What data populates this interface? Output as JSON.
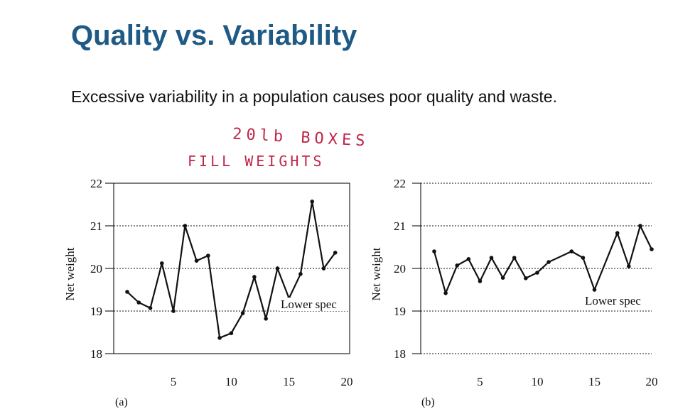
{
  "slide": {
    "title": "Quality vs. Variability",
    "body": "Excessive variability in a population causes poor quality and waste.",
    "annotation": {
      "line1": "20lb BOXES",
      "line2": "FILL WEIGHTS",
      "color": "#c0254a"
    }
  },
  "colors": {
    "title": "#1f5a85",
    "ink": "#111111"
  },
  "chart_data": [
    {
      "type": "line",
      "panel_label": "(a)",
      "ylabel": "Net weight",
      "xlabel": "",
      "xlim": [
        0,
        20
      ],
      "ylim": [
        18,
        22
      ],
      "xticks": [
        5,
        10,
        15,
        20
      ],
      "yticks": [
        18,
        19,
        20,
        21,
        22
      ],
      "grid": "dotted horizontal at each y tick",
      "annotation": "Lower spec",
      "x": [
        1,
        2,
        3,
        4,
        5,
        6,
        7,
        8,
        9,
        10,
        11,
        12,
        13,
        14,
        15,
        16,
        17,
        18,
        19,
        20
      ],
      "values": [
        19.45,
        19.2,
        19.07,
        20.12,
        19.0,
        21.0,
        20.18,
        20.3,
        18.37,
        18.48,
        18.95,
        19.8,
        18.82,
        20.0,
        19.3,
        19.87,
        21.57,
        20.0,
        20.37,
        null
      ]
    },
    {
      "type": "line",
      "panel_label": "(b)",
      "ylabel": "Net weight",
      "xlabel": "",
      "xlim": [
        0,
        20
      ],
      "ylim": [
        18,
        22
      ],
      "xticks": [
        5,
        10,
        15,
        20
      ],
      "yticks": [
        18,
        19,
        20,
        21,
        22
      ],
      "grid": "dotted horizontal at each y tick",
      "annotation": "Lower spec",
      "x": [
        1,
        2,
        3,
        4,
        5,
        6,
        7,
        8,
        9,
        10,
        11,
        13,
        14,
        15,
        17,
        18,
        19,
        20
      ],
      "values": [
        20.4,
        19.42,
        20.07,
        20.22,
        19.7,
        20.25,
        19.78,
        20.25,
        19.77,
        19.9,
        20.15,
        20.4,
        20.25,
        19.5,
        20.83,
        20.05,
        21.0,
        20.45
      ]
    }
  ]
}
